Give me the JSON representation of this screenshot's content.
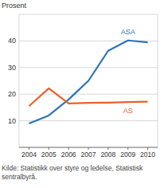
{
  "chart_data": {
    "type": "line",
    "y_label": "Prosent",
    "categories": [
      "2004",
      "2005",
      "2006",
      "2007",
      "2008",
      "2009",
      "2010"
    ],
    "series": [
      {
        "name": "ASA",
        "color": "#2b74b9",
        "values": [
          9,
          12,
          18,
          25,
          36.3,
          40.2,
          39.5
        ]
      },
      {
        "name": "AS",
        "color": "#e8612c",
        "values": [
          15.5,
          22.2,
          16.5,
          16.7,
          16.8,
          17,
          17.2
        ]
      }
    ],
    "ylim": [
      0,
      50
    ],
    "yticks": [
      10,
      20,
      30,
      40
    ],
    "grid": true,
    "source": [
      "Kilde: Statistikk over styre og ledelse, Statistisk",
      "sentralbyrå."
    ]
  }
}
